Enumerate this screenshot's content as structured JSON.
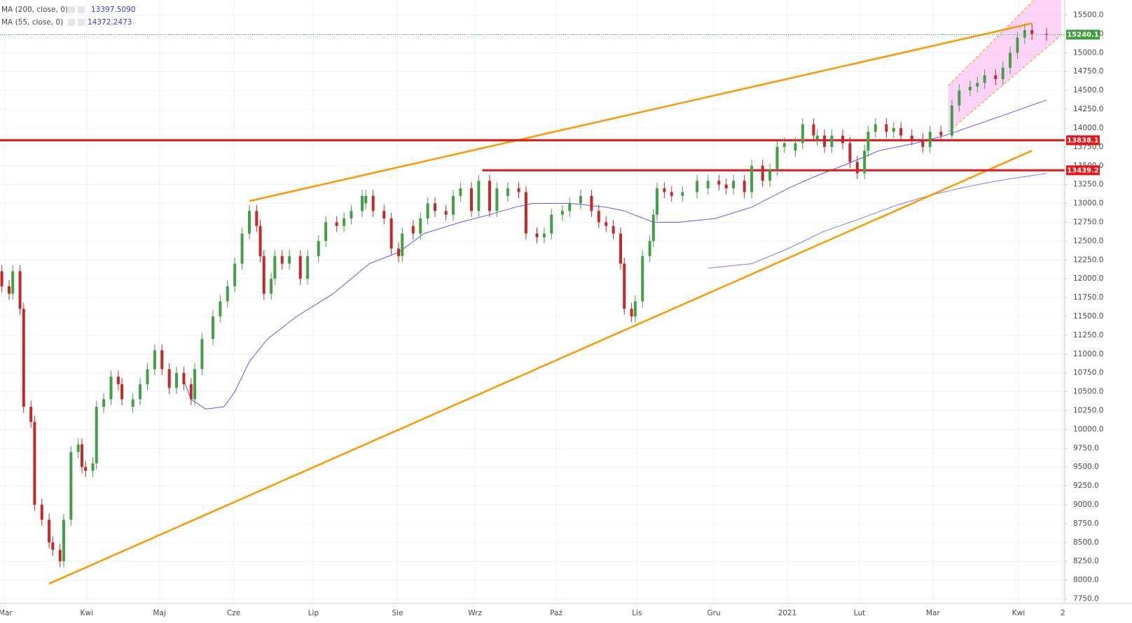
{
  "chart_data": {
    "type": "candlestick",
    "xlim": [
      -1.5,
      291
    ],
    "ylim": [
      7690,
      15700
    ],
    "xticks": [
      {
        "value": 0,
        "label": "Mar"
      },
      {
        "value": 22.3,
        "label": "Kwi"
      },
      {
        "value": 42.3,
        "label": "Maj"
      },
      {
        "value": 62.7,
        "label": "Cze"
      },
      {
        "value": 84.6,
        "label": "Lip"
      },
      {
        "value": 107.7,
        "label": "Sie"
      },
      {
        "value": 129,
        "label": "Wrz"
      },
      {
        "value": 151.3,
        "label": "Paź"
      },
      {
        "value": 173.5,
        "label": "Lis"
      },
      {
        "value": 194.6,
        "label": "Gru"
      },
      {
        "value": 214.8,
        "label": "2021"
      },
      {
        "value": 234.6,
        "label": "Lut"
      },
      {
        "value": 254.8,
        "label": "Mar"
      },
      {
        "value": 278.3,
        "label": "Kwi"
      },
      {
        "value": 290.5,
        "label": "2"
      }
    ],
    "yticks": [
      {
        "value": 7750,
        "label": "7750.0"
      },
      {
        "value": 8000,
        "label": "8000.0"
      },
      {
        "value": 8250,
        "label": "8250.0"
      },
      {
        "value": 8500,
        "label": "8500.0"
      },
      {
        "value": 8750,
        "label": "8750.0"
      },
      {
        "value": 9000,
        "label": "9000.0"
      },
      {
        "value": 9250,
        "label": "9250.0"
      },
      {
        "value": 9500,
        "label": "9500.0"
      },
      {
        "value": 9750,
        "label": "9750.0"
      },
      {
        "value": 10000,
        "label": "10000.0"
      },
      {
        "value": 10250,
        "label": "10250.0"
      },
      {
        "value": 10500,
        "label": "10500.0"
      },
      {
        "value": 10750,
        "label": "10750.0"
      },
      {
        "value": 11000,
        "label": "11000.0"
      },
      {
        "value": 11250,
        "label": "11250.0"
      },
      {
        "value": 11500,
        "label": "11500.0"
      },
      {
        "value": 11750,
        "label": "11750.0"
      },
      {
        "value": 12000,
        "label": "12000.0"
      },
      {
        "value": 12250,
        "label": "12250.0"
      },
      {
        "value": 12500,
        "label": "12500.0"
      },
      {
        "value": 12750,
        "label": "12750.0"
      },
      {
        "value": 13000,
        "label": "13000.0"
      },
      {
        "value": 13250,
        "label": "13250.0"
      },
      {
        "value": 13500,
        "label": "13500.0"
      },
      {
        "value": 13750,
        "label": "13750.0"
      },
      {
        "value": 14000,
        "label": "14000.0"
      },
      {
        "value": 14250,
        "label": "14250.0"
      },
      {
        "value": 14500,
        "label": "14500.0"
      },
      {
        "value": 14750,
        "label": "14750.0"
      },
      {
        "value": 15000,
        "label": "15000.0"
      },
      {
        "value": 15250,
        "label": "15250.0"
      },
      {
        "value": 15500,
        "label": "15500.0"
      }
    ],
    "grid": true,
    "up_color": "#43a047",
    "down_color": "#c62828",
    "candles": {
      "x": [
        -1,
        1,
        2,
        4,
        5,
        7,
        8,
        10,
        12,
        13,
        15,
        16,
        18,
        20,
        21,
        22,
        24,
        25,
        27,
        29,
        31,
        32,
        35,
        37,
        39,
        41,
        43,
        45,
        47,
        49,
        51,
        52,
        54,
        57,
        59,
        61,
        63,
        65,
        67,
        69,
        70,
        71,
        73,
        74,
        76,
        78,
        81,
        83,
        86,
        88,
        91,
        93,
        95,
        98,
        99,
        101,
        104,
        106,
        108,
        109,
        112,
        114,
        116,
        118,
        121,
        123,
        125,
        128,
        130,
        133,
        135,
        138,
        141,
        143,
        146,
        148,
        150,
        153,
        155,
        158,
        161,
        163,
        165,
        167,
        169,
        170,
        172,
        173,
        175,
        177,
        178,
        179,
        181,
        183,
        186,
        190,
        193,
        196,
        198,
        200,
        203,
        205,
        208,
        210,
        212,
        214,
        217,
        219,
        222,
        223,
        225,
        227,
        230,
        232,
        234,
        236,
        237,
        239,
        242,
        244,
        246,
        249,
        252,
        254,
        257,
        260,
        262,
        265,
        267,
        269,
        272,
        274,
        276,
        278,
        280,
        282,
        286
      ],
      "open": [
        12100,
        11900,
        11800,
        12100,
        11600,
        10300,
        10100,
        9000,
        8800,
        8500,
        8400,
        8250,
        8800,
        9700,
        9800,
        9500,
        9450,
        9550,
        10300,
        10400,
        10700,
        10600,
        10300,
        10400,
        10600,
        10800,
        11050,
        10800,
        10550,
        10750,
        10600,
        10400,
        10800,
        11200,
        11500,
        11700,
        11900,
        12200,
        12600,
        12900,
        12700,
        12300,
        11800,
        12000,
        12300,
        12200,
        12300,
        12000,
        12300,
        12500,
        12750,
        12700,
        12800,
        12900,
        13000,
        13100,
        12900,
        12800,
        12400,
        12300,
        12700,
        12600,
        12800,
        13000,
        12900,
        12850,
        13100,
        13200,
        12900,
        13300,
        12900,
        13100,
        13200,
        13150,
        12600,
        12550,
        12600,
        12850,
        12900,
        13000,
        13100,
        12900,
        12750,
        12700,
        12600,
        12200,
        11600,
        11500,
        11700,
        12300,
        12500,
        12850,
        13200,
        13150,
        13100,
        13150,
        13200,
        13300,
        13250,
        13200,
        13300,
        13150,
        13500,
        13300,
        13450,
        13750,
        13700,
        13800,
        14050,
        13850,
        13900,
        13750,
        13900,
        13800,
        13550,
        13400,
        13700,
        13950,
        14050,
        13950,
        14000,
        13900,
        13850,
        13750,
        13950,
        13900,
        14300,
        14500,
        14550,
        14600,
        14700,
        14650,
        14800,
        15000,
        15200,
        15300,
        15250
      ],
      "high": [
        12180,
        11980,
        12180,
        12180,
        11680,
        10380,
        10180,
        9080,
        8880,
        8580,
        8480,
        8880,
        9780,
        9880,
        9880,
        9580,
        9630,
        10380,
        10480,
        10780,
        10780,
        10680,
        10480,
        10680,
        10880,
        11130,
        11130,
        10880,
        10830,
        10830,
        10680,
        10880,
        11280,
        11580,
        11780,
        11980,
        12280,
        12680,
        12980,
        12980,
        12780,
        12380,
        12080,
        12380,
        12380,
        12380,
        12380,
        12380,
        12580,
        12830,
        12830,
        12880,
        12980,
        13180,
        13180,
        13180,
        12980,
        12880,
        12480,
        12680,
        12780,
        12880,
        13080,
        13080,
        12980,
        13180,
        13280,
        13280,
        13380,
        13380,
        13280,
        13280,
        13280,
        13230,
        12680,
        12680,
        12930,
        12980,
        13080,
        13180,
        13180,
        12980,
        12830,
        12780,
        12680,
        12280,
        11680,
        11780,
        12380,
        12580,
        12930,
        13280,
        13280,
        13230,
        13230,
        13380,
        13380,
        13380,
        13330,
        13380,
        13380,
        13580,
        13580,
        13530,
        13830,
        13880,
        13880,
        14130,
        14130,
        13980,
        13980,
        13980,
        13980,
        13880,
        13630,
        13780,
        14030,
        14130,
        14130,
        14080,
        14080,
        13980,
        13930,
        14030,
        14030,
        14380,
        14580,
        14630,
        14680,
        14780,
        14780,
        14880,
        15080,
        15280,
        15380,
        15380,
        15330
      ],
      "low": [
        11820,
        11720,
        11720,
        11520,
        10220,
        10020,
        8920,
        8720,
        8420,
        8320,
        8170,
        8170,
        8720,
        9620,
        9420,
        9370,
        9370,
        9470,
        10220,
        10320,
        10520,
        10320,
        10220,
        10320,
        10520,
        10720,
        10720,
        10470,
        10470,
        10520,
        10320,
        10320,
        10720,
        11120,
        11420,
        11620,
        11820,
        12120,
        12520,
        12620,
        12220,
        11720,
        11720,
        11920,
        12120,
        12120,
        11920,
        11920,
        12220,
        12420,
        12620,
        12620,
        12720,
        12820,
        12920,
        12820,
        12720,
        12320,
        12220,
        12220,
        12520,
        12520,
        12720,
        12820,
        12770,
        12770,
        13020,
        12820,
        12820,
        12820,
        12820,
        13020,
        13070,
        12520,
        12470,
        12470,
        12520,
        12770,
        12820,
        12920,
        12820,
        12670,
        12620,
        12520,
        12120,
        11520,
        11420,
        11420,
        11620,
        12220,
        12420,
        12770,
        13070,
        13020,
        13020,
        13070,
        13120,
        13170,
        13120,
        13120,
        13070,
        13070,
        13220,
        13220,
        13370,
        13670,
        13620,
        13720,
        13820,
        13770,
        13670,
        13670,
        13720,
        13470,
        13320,
        13320,
        13620,
        13870,
        13870,
        13870,
        13820,
        13770,
        13670,
        13670,
        13820,
        13820,
        14220,
        14420,
        14470,
        14520,
        14570,
        14570,
        14720,
        14920,
        15120,
        15170,
        15160
      ],
      "close": [
        11900,
        11800,
        12100,
        11600,
        10300,
        10100,
        9000,
        8800,
        8500,
        8400,
        8250,
        8800,
        9700,
        9800,
        9500,
        9450,
        9550,
        10300,
        10400,
        10700,
        10600,
        10400,
        10400,
        10600,
        10800,
        11050,
        10800,
        10550,
        10750,
        10600,
        10400,
        10800,
        11200,
        11500,
        11700,
        11900,
        12200,
        12600,
        12900,
        12700,
        12300,
        11800,
        12000,
        12300,
        12200,
        12300,
        12000,
        12300,
        12500,
        12750,
        12700,
        12800,
        12900,
        13100,
        13100,
        12900,
        12800,
        12400,
        12300,
        12600,
        12600,
        12800,
        13000,
        12900,
        12850,
        13100,
        13200,
        12900,
        13300,
        12900,
        13200,
        13200,
        13150,
        12600,
        12550,
        12600,
        12850,
        12900,
        13000,
        13100,
        12900,
        12750,
        12700,
        12600,
        12200,
        11600,
        11500,
        11700,
        12300,
        12500,
        12850,
        13200,
        13150,
        13100,
        13150,
        13300,
        13300,
        13250,
        13200,
        13300,
        13150,
        13500,
        13300,
        13450,
        13750,
        13800,
        13800,
        14050,
        13900,
        13900,
        13750,
        13900,
        13800,
        13550,
        13400,
        13700,
        13950,
        14050,
        13950,
        14000,
        13900,
        13850,
        13750,
        13950,
        13900,
        14300,
        14500,
        14550,
        14600,
        14700,
        14650,
        14800,
        15000,
        15200,
        15300,
        15250,
        15240
      ]
    },
    "series": [
      {
        "name": "MA (200, close, 0)",
        "legend_value": "13397.5090",
        "color": "#7b7bf0",
        "x": [
          193,
          205,
          215,
          225,
          235,
          245,
          255,
          265,
          275,
          286
        ],
        "values": [
          12140,
          12200,
          12400,
          12632,
          12800,
          12980,
          13120,
          13230,
          13320,
          13398
        ]
      },
      {
        "name": "MA (55, close, 0)",
        "legend_value": "14372.2473",
        "color": "#5b5bf5",
        "x": [
          49,
          51,
          55,
          60,
          63,
          67,
          72,
          80,
          90,
          100,
          108,
          115,
          125,
          133,
          140,
          145,
          155,
          165,
          170,
          178,
          185,
          195,
          205,
          215,
          222,
          230,
          240,
          250,
          258,
          270,
          286
        ],
        "values": [
          10650,
          10400,
          10270,
          10300,
          10500,
          10900,
          11200,
          11500,
          11800,
          12200,
          12350,
          12600,
          12750,
          12850,
          12950,
          13000,
          13000,
          12950,
          12900,
          12750,
          12750,
          12800,
          12950,
          13200,
          13350,
          13500,
          13700,
          13800,
          13900,
          14100,
          14372
        ]
      }
    ],
    "trendlines": [
      {
        "color": "#ff9800",
        "x": [
          67,
          282
        ],
        "values": [
          13031,
          15390
        ]
      },
      {
        "color": "#ff9800",
        "x": [
          12,
          282
        ],
        "values": [
          7952,
          13700
        ]
      }
    ],
    "channel": {
      "fill": "#f9c8f5",
      "border": "#ff9800",
      "x": [
        259,
        290
      ],
      "upper": [
        14563,
        16060
      ],
      "lower": [
        13950,
        15232
      ]
    },
    "hlines": [
      {
        "value": 13838.1,
        "color": "#e81416"
      },
      {
        "value": 13439.2,
        "color": "#e81416",
        "x_start": 131
      }
    ],
    "last_price": {
      "value": 15240.1,
      "color": "#3e9e3e"
    }
  }
}
